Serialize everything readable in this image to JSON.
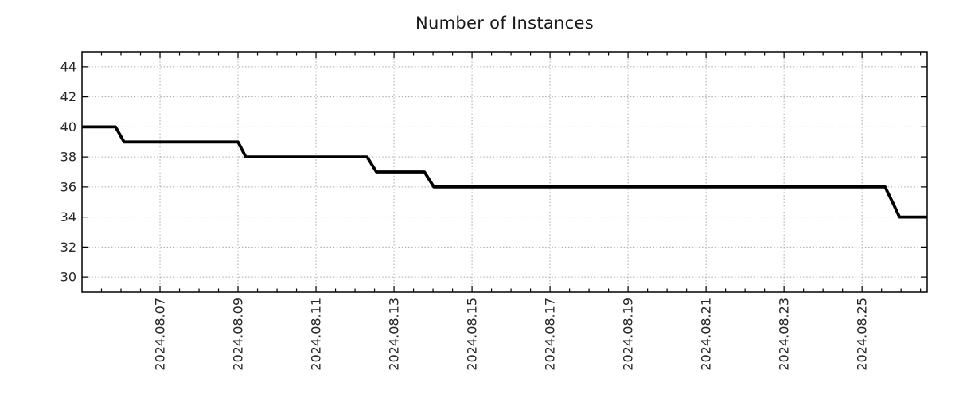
{
  "chart_data": {
    "type": "line",
    "subtype": "step-time-series",
    "title": "Number of Instances",
    "xlabel": "",
    "ylabel": "",
    "legend": "none",
    "grid": "dotted-major-both-axes",
    "x_axis": {
      "start_date": "2024-08-05",
      "unit": "days since 2024-08-05 00:00",
      "xlim": [
        0,
        21.67
      ],
      "major_ticks": [
        {
          "day": 2,
          "label": "2024.08.07"
        },
        {
          "day": 4,
          "label": "2024.08.09"
        },
        {
          "day": 6,
          "label": "2024.08.11"
        },
        {
          "day": 8,
          "label": "2024.08.13"
        },
        {
          "day": 10,
          "label": "2024.08.15"
        },
        {
          "day": 12,
          "label": "2024.08.17"
        },
        {
          "day": 14,
          "label": "2024.08.19"
        },
        {
          "day": 16,
          "label": "2024.08.21"
        },
        {
          "day": 18,
          "label": "2024.08.23"
        },
        {
          "day": 20,
          "label": "2024.08.25"
        }
      ],
      "minor_tick_interval_days": 0.5
    },
    "y_axis": {
      "ylim": [
        29,
        45
      ],
      "major_ticks": [
        30,
        32,
        34,
        36,
        38,
        40,
        42,
        44
      ]
    },
    "series": [
      {
        "name": "instances",
        "color": "#000000",
        "points": [
          [
            0.0,
            40
          ],
          [
            0.86,
            40
          ],
          [
            1.08,
            39
          ],
          [
            4.0,
            39
          ],
          [
            4.2,
            38
          ],
          [
            7.31,
            38
          ],
          [
            7.55,
            37
          ],
          [
            8.78,
            37
          ],
          [
            9.02,
            36
          ],
          [
            20.59,
            36
          ],
          [
            20.78,
            35
          ],
          [
            20.96,
            34
          ],
          [
            21.67,
            34
          ]
        ]
      }
    ],
    "colors": {
      "line": "#000000",
      "grid": "#a6a6a6",
      "axis_border": "#000000",
      "tick_text": "#262626",
      "title_text": "#1a1a1a",
      "background": "#ffffff"
    }
  }
}
